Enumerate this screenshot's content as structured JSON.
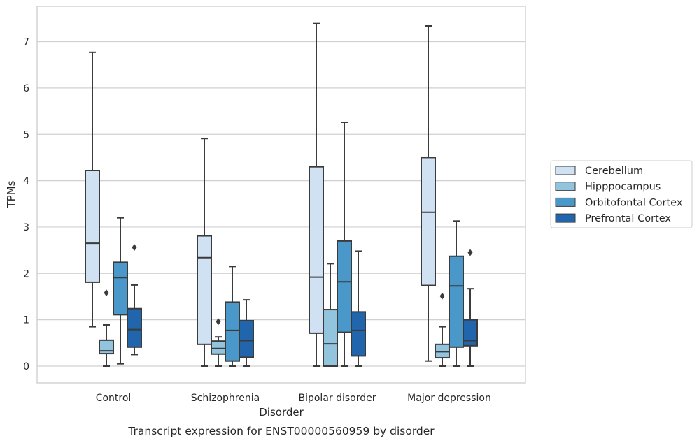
{
  "chart_data": {
    "type": "box",
    "caption": "Transcript expression for ENST00000560959 by disorder",
    "xlabel": "Disorder",
    "ylabel": "TPMs",
    "ylim": [
      -0.35,
      7.75
    ],
    "yticks": [
      0,
      1,
      2,
      3,
      4,
      5,
      6,
      7
    ],
    "grid": "horizontal",
    "legend_position": "right",
    "categories": [
      "Control",
      "Schizophrenia",
      "Bipolar disorder",
      "Major depression"
    ],
    "series": [
      {
        "name": "Cerebellum",
        "color": "#cfe1f2",
        "boxes": [
          {
            "min": 0.85,
            "q1": 1.81,
            "median": 2.65,
            "q3": 4.22,
            "max": 6.77,
            "outliers": []
          },
          {
            "min": 0.0,
            "q1": 0.47,
            "median": 2.34,
            "q3": 2.81,
            "max": 4.91,
            "outliers": []
          },
          {
            "min": 0.0,
            "q1": 0.71,
            "median": 1.92,
            "q3": 4.3,
            "max": 7.39,
            "outliers": []
          },
          {
            "min": 0.11,
            "q1": 1.74,
            "median": 3.32,
            "q3": 4.5,
            "max": 7.34,
            "outliers": []
          }
        ]
      },
      {
        "name": "Hipppocampus",
        "color": "#93c4de",
        "boxes": [
          {
            "min": 0.0,
            "q1": 0.27,
            "median": 0.33,
            "q3": 0.56,
            "max": 0.89,
            "outliers": [
              1.58
            ]
          },
          {
            "min": 0.0,
            "q1": 0.26,
            "median": 0.38,
            "q3": 0.54,
            "max": 0.63,
            "outliers": [
              0.96
            ]
          },
          {
            "min": 0.0,
            "q1": 0.0,
            "median": 0.48,
            "q3": 1.22,
            "max": 2.21,
            "outliers": []
          },
          {
            "min": 0.0,
            "q1": 0.18,
            "median": 0.31,
            "q3": 0.47,
            "max": 0.85,
            "outliers": [
              1.51
            ]
          }
        ]
      },
      {
        "name": "Orbitofontal Cortex",
        "color": "#4a98c9",
        "boxes": [
          {
            "min": 0.05,
            "q1": 1.11,
            "median": 1.91,
            "q3": 2.24,
            "max": 3.2,
            "outliers": []
          },
          {
            "min": 0.0,
            "q1": 0.11,
            "median": 0.77,
            "q3": 1.38,
            "max": 2.15,
            "outliers": []
          },
          {
            "min": 0.0,
            "q1": 0.73,
            "median": 1.82,
            "q3": 2.7,
            "max": 5.26,
            "outliers": []
          },
          {
            "min": 0.0,
            "q1": 0.41,
            "median": 1.73,
            "q3": 2.37,
            "max": 3.13,
            "outliers": []
          }
        ]
      },
      {
        "name": "Prefrontal Cortex",
        "color": "#2166ac",
        "boxes": [
          {
            "min": 0.25,
            "q1": 0.41,
            "median": 0.79,
            "q3": 1.24,
            "max": 1.75,
            "outliers": [
              2.56
            ]
          },
          {
            "min": 0.0,
            "q1": 0.19,
            "median": 0.55,
            "q3": 0.98,
            "max": 1.43,
            "outliers": []
          },
          {
            "min": 0.0,
            "q1": 0.22,
            "median": 0.77,
            "q3": 1.17,
            "max": 2.48,
            "outliers": []
          },
          {
            "min": 0.0,
            "q1": 0.44,
            "median": 0.55,
            "q3": 1.0,
            "max": 1.67,
            "outliers": [
              2.45
            ]
          }
        ]
      }
    ]
  }
}
